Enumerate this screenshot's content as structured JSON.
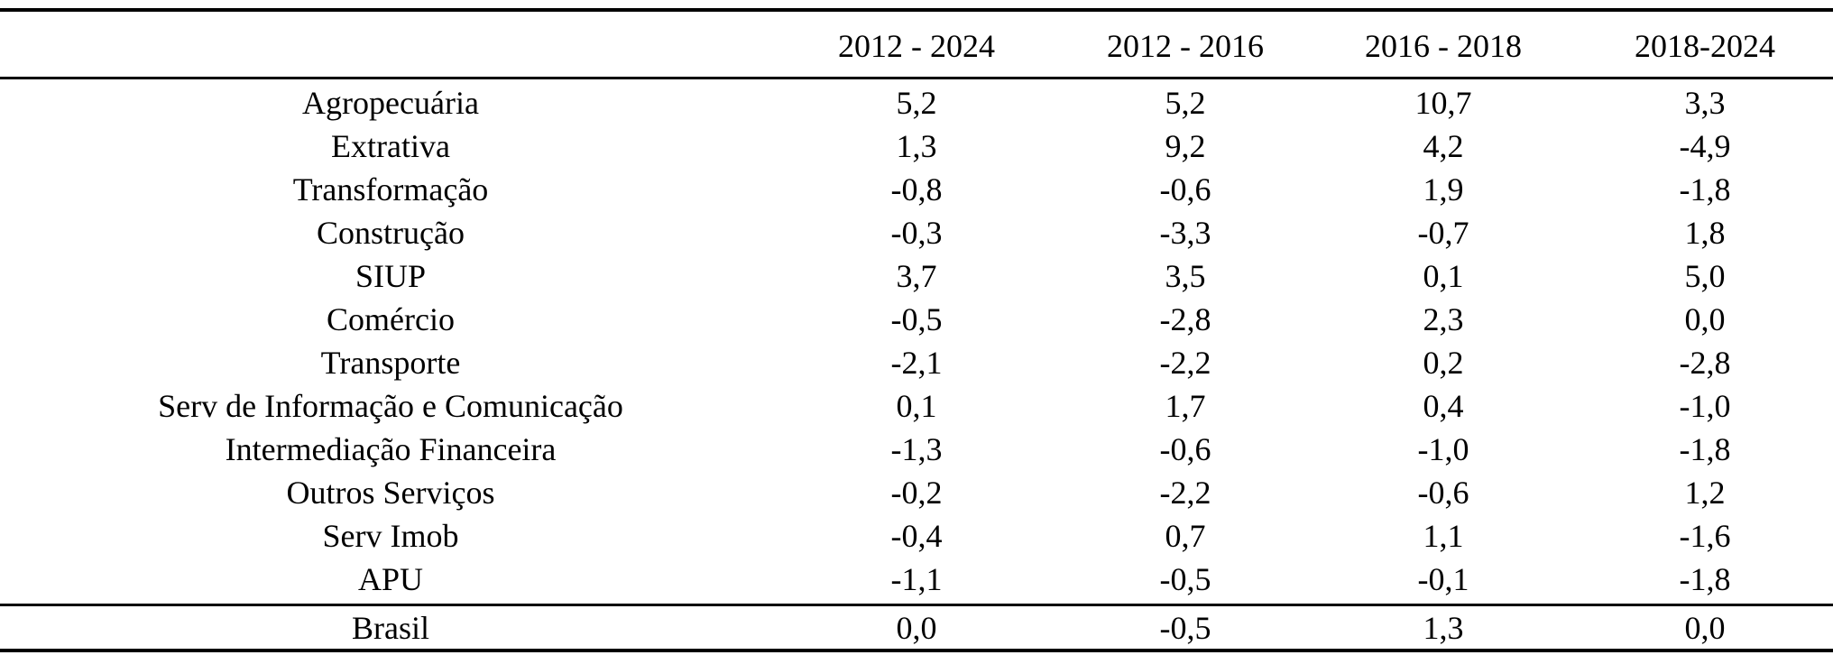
{
  "table": {
    "columns": [
      "",
      "2012 - 2024",
      "2012 - 2016",
      "2016 - 2018",
      "2018-2024"
    ],
    "rows": [
      {
        "label": "Agropecuária",
        "values": [
          "5,2",
          "5,2",
          "10,7",
          "3,3"
        ]
      },
      {
        "label": "Extrativa",
        "values": [
          "1,3",
          "9,2",
          "4,2",
          "-4,9"
        ]
      },
      {
        "label": "Transformação",
        "values": [
          "-0,8",
          "-0,6",
          "1,9",
          "-1,8"
        ]
      },
      {
        "label": "Construção",
        "values": [
          "-0,3",
          "-3,3",
          "-0,7",
          "1,8"
        ]
      },
      {
        "label": "SIUP",
        "values": [
          "3,7",
          "3,5",
          "0,1",
          "5,0"
        ]
      },
      {
        "label": "Comércio",
        "values": [
          "-0,5",
          "-2,8",
          "2,3",
          "0,0"
        ]
      },
      {
        "label": "Transporte",
        "values": [
          "-2,1",
          "-2,2",
          "0,2",
          "-2,8"
        ]
      },
      {
        "label": "Serv de Informação e Comunicação",
        "values": [
          "0,1",
          "1,7",
          "0,4",
          "-1,0"
        ]
      },
      {
        "label": "Intermediação Financeira",
        "values": [
          "-1,3",
          "-0,6",
          "-1,0",
          "-1,8"
        ]
      },
      {
        "label": "Outros Serviços",
        "values": [
          "-0,2",
          "-2,2",
          "-0,6",
          "1,2"
        ]
      },
      {
        "label": "Serv Imob",
        "values": [
          "-0,4",
          "0,7",
          "1,1",
          "-1,6"
        ]
      },
      {
        "label": "APU",
        "values": [
          "-1,1",
          "-0,5",
          "-0,1",
          "-1,8"
        ]
      }
    ],
    "total": {
      "label": "Brasil",
      "values": [
        "0,0",
        "-0,5",
        "1,3",
        "0,0"
      ]
    }
  }
}
